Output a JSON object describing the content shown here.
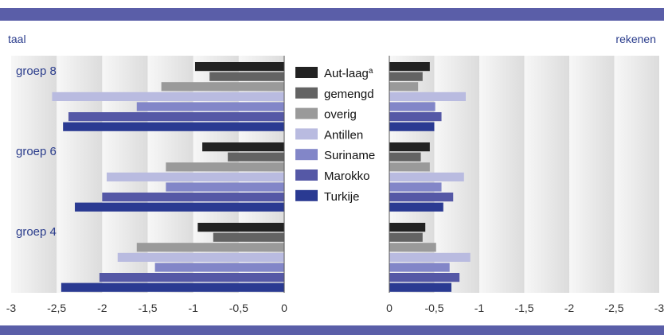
{
  "colors": {
    "band": "#5a5ea8",
    "group_label": "#2a3c8c",
    "tick": "#333333",
    "axis": "#555555"
  },
  "labels": {
    "left_title": "taal",
    "right_title": "rekenen"
  },
  "chart_data": {
    "type": "bar",
    "orientation": "horizontal",
    "categories": [
      "groep 8",
      "groep 6",
      "groep 4"
    ],
    "series": [
      {
        "name": "Aut-laag",
        "superscript": "a",
        "color": "#222222",
        "taal": [
          -0.98,
          -0.9,
          -0.95
        ],
        "rekenen": [
          -0.45,
          -0.45,
          -0.4
        ]
      },
      {
        "name": "gemengd",
        "color": "#636363",
        "taal": [
          -0.82,
          -0.62,
          -0.78
        ],
        "rekenen": [
          -0.37,
          -0.35,
          -0.37
        ]
      },
      {
        "name": "overig",
        "color": "#9a9a9a",
        "taal": [
          -1.35,
          -1.3,
          -1.62
        ],
        "rekenen": [
          -0.32,
          -0.45,
          -0.52
        ]
      },
      {
        "name": "Antillen",
        "color": "#b9bbe0",
        "taal": [
          -2.55,
          -1.95,
          -1.83
        ],
        "rekenen": [
          -0.85,
          -0.83,
          -0.9
        ]
      },
      {
        "name": "Suriname",
        "color": "#8286c8",
        "taal": [
          -1.62,
          -1.3,
          -1.42
        ],
        "rekenen": [
          -0.51,
          -0.58,
          -0.67
        ]
      },
      {
        "name": "Marokko",
        "color": "#5558a6",
        "taal": [
          -2.37,
          -2.0,
          -2.03
        ],
        "rekenen": [
          -0.58,
          -0.71,
          -0.78
        ]
      },
      {
        "name": "Turkije",
        "color": "#2a3a92",
        "taal": [
          -2.43,
          -2.3,
          -2.45
        ],
        "rekenen": [
          -0.5,
          -0.6,
          -0.69
        ]
      }
    ],
    "panels": [
      {
        "key": "taal",
        "title": "taal",
        "xlim": [
          -3,
          0
        ],
        "ticks": [
          "-3",
          "-2,5",
          "-2",
          "-1,5",
          "-1",
          "-0,5",
          "0"
        ]
      },
      {
        "key": "rekenen",
        "title": "rekenen",
        "xlim": [
          0,
          -3
        ],
        "ticks": [
          "0",
          "-0,5",
          "-1",
          "-1,5",
          "-2",
          "-2,5",
          "-3"
        ]
      }
    ],
    "legend_position": "center"
  }
}
